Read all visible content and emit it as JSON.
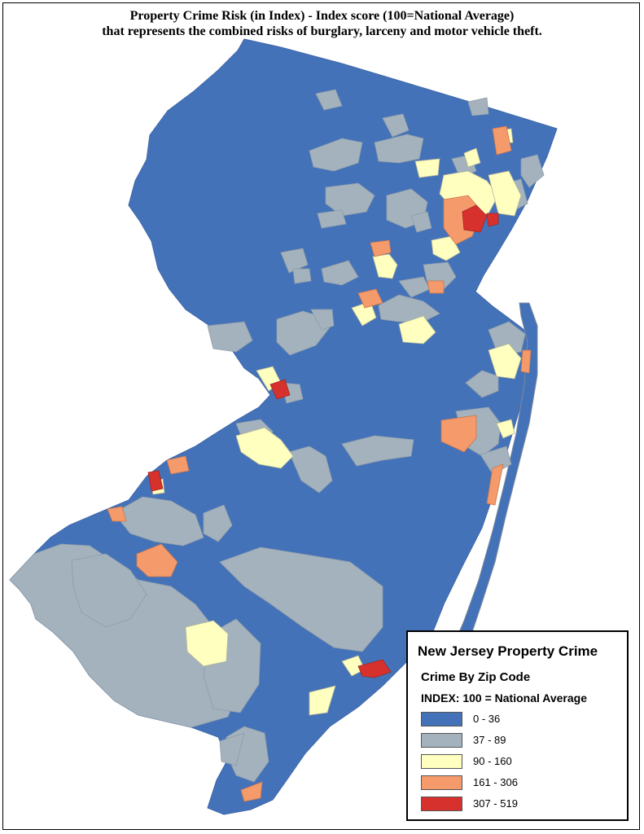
{
  "header": {
    "line1": "Property Crime Risk (in Index) - Index score (100=National Average)",
    "line2": "that represents the combined risks of burglary, larceny and motor vehicle theft."
  },
  "legend": {
    "title": "New Jersey Property Crime",
    "subtitle": "Crime By Zip Code",
    "index_note": "INDEX: 100 = National Average",
    "classes": [
      {
        "label": "0 - 36",
        "color": "#4472b9"
      },
      {
        "label": "37 - 89",
        "color": "#a3b2bd"
      },
      {
        "label": "90 - 160",
        "color": "#ffffc0"
      },
      {
        "label": "161 - 306",
        "color": "#f59a6a"
      },
      {
        "label": "307 - 519",
        "color": "#d7312e"
      }
    ]
  },
  "colors": {
    "water_border": "#7d8a96",
    "region_border": "#3e67a8"
  }
}
